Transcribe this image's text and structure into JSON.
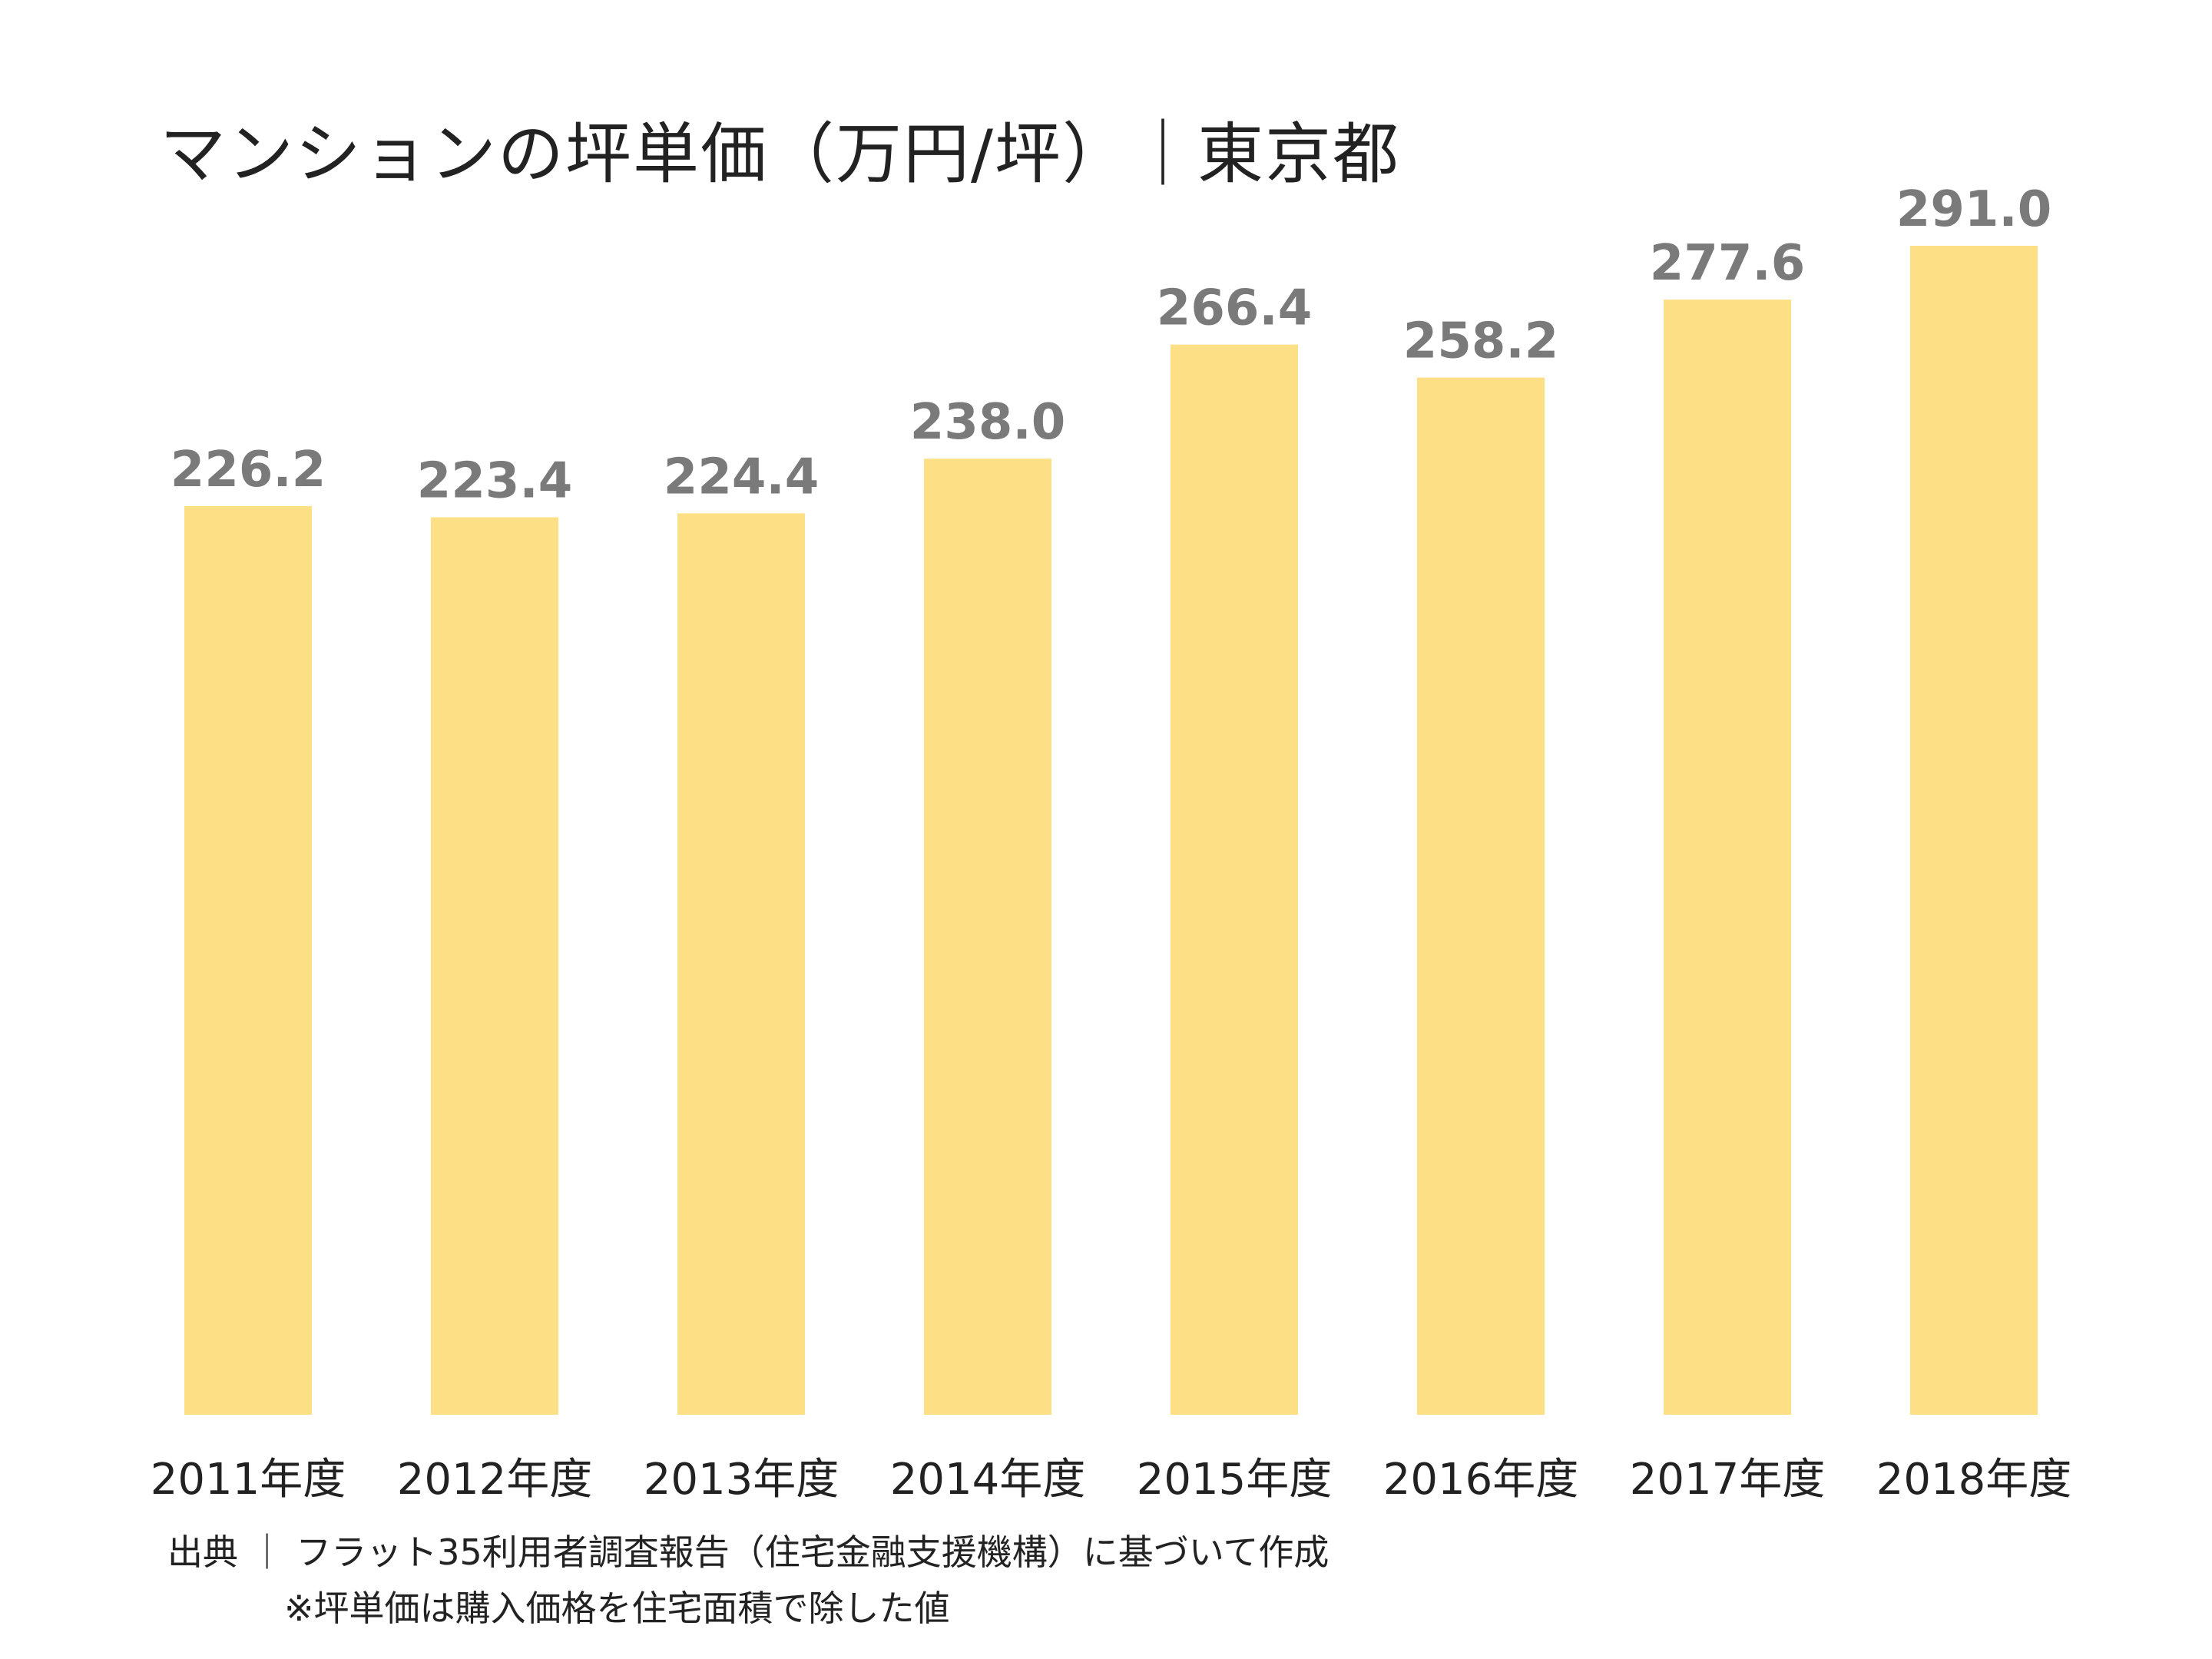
{
  "chart_data": {
    "type": "bar",
    "title": "マンションの坪単価（万円/坪）｜東京都",
    "categories": [
      "2011年度",
      "2012年度",
      "2013年度",
      "2014年度",
      "2015年度",
      "2016年度",
      "2017年度",
      "2018年度"
    ],
    "values": [
      226.2,
      223.4,
      224.4,
      238.0,
      266.4,
      258.2,
      277.6,
      291.0
    ],
    "value_labels": [
      "226.2",
      "223.4",
      "224.4",
      "238.0",
      "266.4",
      "258.2",
      "277.6",
      "291.0"
    ],
    "xlabel": "",
    "ylabel": "",
    "ylim": [
      0,
      291.0
    ],
    "grid": false,
    "legend": "none",
    "bar_color": "#FDDF86",
    "value_label_color": "#7A7A7A"
  },
  "footer": {
    "source": "出典 ｜ フラット35利用者調査報告（住宅金融支援機構）に基づいて作成",
    "note": "※坪単価は購入価格を住宅面積で除した値"
  }
}
